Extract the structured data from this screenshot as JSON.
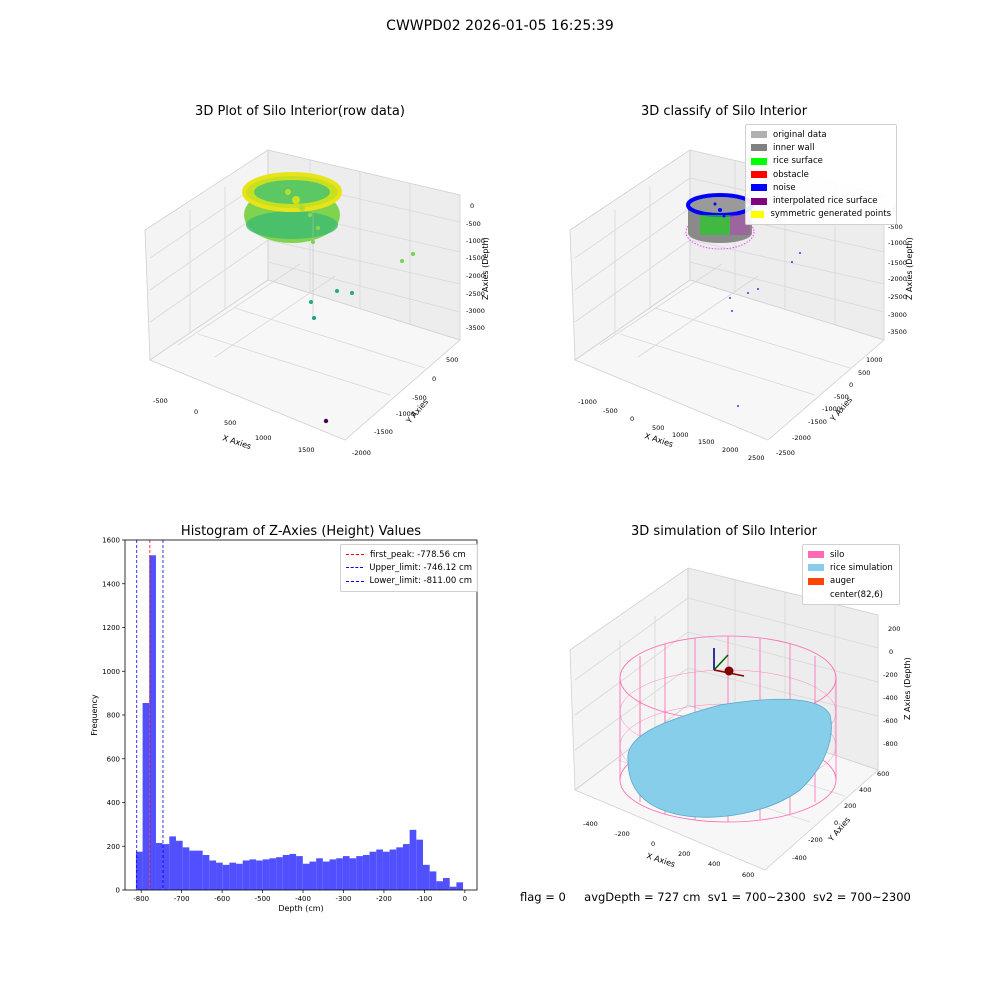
{
  "figure": {
    "suptitle": "CWWPD02 2026-01-05 16:25:39",
    "footer": {
      "flag": "flag = 0",
      "avg_depth": "avgDepth = 727 cm",
      "sv1": "sv1 = 700~2300",
      "sv2": "sv2 = 700~2300"
    }
  },
  "chart_data": [
    {
      "type": "scatter",
      "title": "3D Plot of Silo Interior(row data)",
      "xlabel": "X Axies",
      "ylabel": "Y Axies",
      "zlabel": "Z Axies (Depth)",
      "x_ticks": [
        "-500",
        "0",
        "500",
        "1000",
        "1500"
      ],
      "y_ticks": [
        "500",
        "0",
        "-500",
        "-1000",
        "-1500",
        "-2000"
      ],
      "z_ticks": [
        "0",
        "-500",
        "-1000",
        "-1500",
        "-2000",
        "-2500",
        "-3000",
        "-3500"
      ],
      "colormap": "viridis",
      "outlier_points": [
        {
          "x": 1450,
          "y": 150,
          "z": -1500
        },
        {
          "x": 1350,
          "y": 100,
          "z": -1650
        },
        {
          "x": 600,
          "y": -500,
          "z": -2300
        },
        {
          "x": 700,
          "y": -300,
          "z": -2400
        },
        {
          "x": 100,
          "y": -600,
          "z": -2700
        },
        {
          "x": 150,
          "y": -700,
          "z": -3100
        },
        {
          "x": 1400,
          "y": -1800,
          "z": -3600
        }
      ]
    },
    {
      "type": "scatter",
      "title": "3D classify of Silo Interior",
      "xlabel": "X Axies",
      "ylabel": "Y Axies",
      "zlabel": "Z Axies (Depth)",
      "x_ticks": [
        "-1000",
        "-500",
        "0",
        "500",
        "1000",
        "1500",
        "2000",
        "2500"
      ],
      "y_ticks": [
        "1000",
        "500",
        "0",
        "-500",
        "-1000",
        "-1500",
        "-2000",
        "-2500"
      ],
      "z_ticks": [
        "0",
        "-500",
        "-1000",
        "-1500",
        "-2000",
        "-2500",
        "-3000",
        "-3500"
      ],
      "legend": [
        {
          "label": "original data",
          "color": "#b0b0b0"
        },
        {
          "label": "inner wall",
          "color": "#808080"
        },
        {
          "label": "rice surface",
          "color": "#00ff00"
        },
        {
          "label": "obstacle",
          "color": "#ff0000"
        },
        {
          "label": "noise",
          "color": "#0000ff"
        },
        {
          "label": "interpolated rice surface",
          "color": "#800080"
        },
        {
          "label": "symmetric generated points",
          "color": "#ffff00"
        }
      ]
    },
    {
      "type": "bar",
      "title": "Histogram of Z-Axies (Height) Values",
      "xlabel": "Depth (cm)",
      "ylabel": "Frequency",
      "xlim": [
        -840,
        30
      ],
      "ylim": [
        0,
        1600
      ],
      "x_ticks": [
        -800,
        -700,
        -600,
        -500,
        -400,
        -300,
        -200,
        -100,
        0
      ],
      "y_ticks": [
        0,
        200,
        400,
        600,
        800,
        1000,
        1200,
        1400,
        1600
      ],
      "bin_start": -813,
      "bin_width": 16.5,
      "bar_color": "#5050ff",
      "values": [
        175,
        855,
        1530,
        215,
        210,
        245,
        225,
        195,
        180,
        180,
        160,
        135,
        125,
        115,
        125,
        120,
        135,
        140,
        135,
        140,
        145,
        150,
        160,
        165,
        155,
        120,
        130,
        145,
        130,
        140,
        145,
        155,
        145,
        155,
        160,
        175,
        185,
        175,
        185,
        195,
        210,
        275,
        230,
        115,
        85,
        40,
        55,
        15,
        35
      ],
      "lines": [
        {
          "label": "first_peak: -778.56 cm",
          "x": -778.56,
          "color": "#ff0000"
        },
        {
          "label": "Upper_limit: -746.12 cm",
          "x": -746.12,
          "color": "#0000ff"
        },
        {
          "label": "Lower_limit: -811.00 cm",
          "x": -811.0,
          "color": "#0000ff"
        }
      ]
    },
    {
      "type": "scatter",
      "title": "3D simulation of Silo Interior",
      "xlabel": "X Axies",
      "ylabel": "Y Axies",
      "zlabel": "Z Axies (Depth)",
      "x_ticks": [
        "-400",
        "-200",
        "0",
        "200",
        "400",
        "600"
      ],
      "y_ticks": [
        "600",
        "400",
        "200",
        "0",
        "-200",
        "-400"
      ],
      "z_ticks": [
        "200",
        "0",
        "-200",
        "-400",
        "-600",
        "-800"
      ],
      "legend": [
        {
          "label": "silo",
          "color": "#ff69b4"
        },
        {
          "label": "rice simulation",
          "color": "#87ceeb"
        },
        {
          "label": "auger",
          "color": "#ff4500"
        },
        {
          "label": "center(82,6)",
          "color": "#ffffff"
        }
      ]
    }
  ]
}
